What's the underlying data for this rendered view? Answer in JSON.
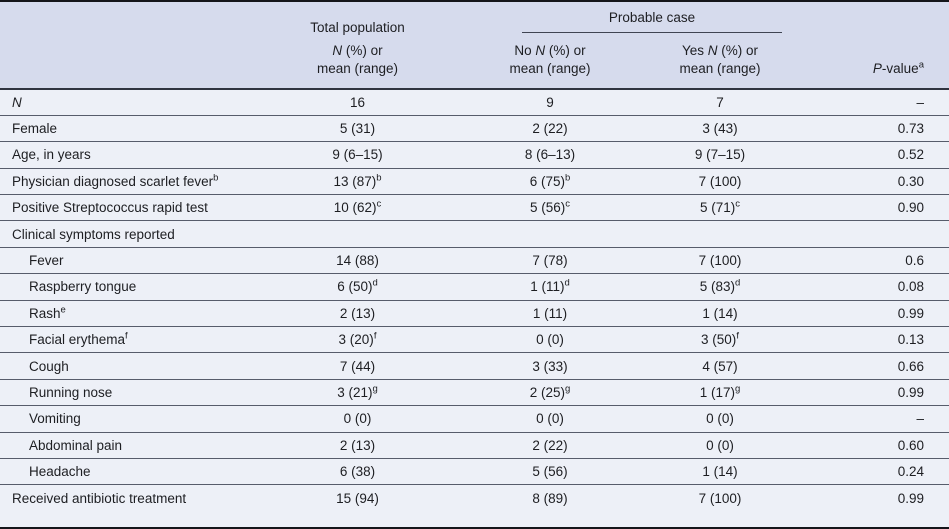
{
  "table": {
    "header": {
      "total_title": "Total population",
      "probable_title": "Probable case",
      "no_prefix": "No ",
      "yes_prefix": "Yes ",
      "n_label": "N",
      "measure_suffix": " (%) or",
      "measure_line2": "mean (range)",
      "p_label": "P",
      "p_suffix": "-value",
      "p_sup": "a"
    },
    "rows": [
      {
        "label": "N",
        "label_italic": true,
        "indent": 0,
        "cells": [
          "16",
          "9",
          "7",
          "–"
        ]
      },
      {
        "label": "Female",
        "label_italic": false,
        "indent": 0,
        "cells": [
          "5 (31)",
          "2 (22)",
          "3 (43)",
          "0.73"
        ]
      },
      {
        "label": "Age, in years",
        "label_italic": false,
        "indent": 0,
        "cells": [
          "9 (6–15)",
          "8 (6–13)",
          "9 (7–15)",
          "0.52"
        ]
      },
      {
        "label": "Physician diagnosed scarlet fever^b",
        "label_italic": false,
        "indent": 0,
        "cells": [
          "13 (87)^b",
          "6 (75)^b",
          "7 (100)",
          "0.30"
        ]
      },
      {
        "label": "Positive Streptococcus rapid test",
        "label_italic": false,
        "indent": 0,
        "cells": [
          "10 (62)^c",
          "5 (56)^c",
          "5 (71)^c",
          "0.90"
        ]
      },
      {
        "label": "Clinical symptoms reported",
        "label_italic": false,
        "indent": 0,
        "cells": [
          "",
          "",
          "",
          ""
        ]
      },
      {
        "label": "Fever",
        "label_italic": false,
        "indent": 1,
        "cells": [
          "14 (88)",
          "7 (78)",
          "7 (100)",
          "0.6"
        ]
      },
      {
        "label": "Raspberry tongue",
        "label_italic": false,
        "indent": 1,
        "cells": [
          "6 (50)^d",
          "1 (11)^d",
          "5 (83)^d",
          "0.08"
        ]
      },
      {
        "label": "Rash^e",
        "label_italic": false,
        "indent": 1,
        "cells": [
          "2 (13)",
          "1 (11)",
          "1 (14)",
          "0.99"
        ]
      },
      {
        "label": "Facial erythema^f",
        "label_italic": false,
        "indent": 1,
        "cells": [
          "3 (20)^f",
          "0 (0)",
          "3 (50)^f",
          "0.13"
        ]
      },
      {
        "label": "Cough",
        "label_italic": false,
        "indent": 1,
        "cells": [
          "7 (44)",
          "3 (33)",
          "4 (57)",
          "0.66"
        ]
      },
      {
        "label": "Running nose",
        "label_italic": false,
        "indent": 1,
        "cells": [
          "3 (21)^g",
          "2 (25)^g",
          "1 (17)^g",
          "0.99"
        ]
      },
      {
        "label": "Vomiting",
        "label_italic": false,
        "indent": 1,
        "cells": [
          "0 (0)",
          "0 (0)",
          "0 (0)",
          "–"
        ]
      },
      {
        "label": "Abdominal pain",
        "label_italic": false,
        "indent": 1,
        "cells": [
          "2 (13)",
          "2 (22)",
          "0 (0)",
          "0.60"
        ]
      },
      {
        "label": "Headache",
        "label_italic": false,
        "indent": 1,
        "cells": [
          "6 (38)",
          "5 (56)",
          "1 (14)",
          "0.24"
        ]
      },
      {
        "label": "Received antibiotic treatment",
        "label_italic": false,
        "indent": 0,
        "cells": [
          "15 (94)",
          "8 (89)",
          "7 (100)",
          "0.99"
        ]
      }
    ],
    "colors": {
      "header_bg": "#d6dbed",
      "body_bg": "#edf0f7",
      "row_line": "#575c6b",
      "outer_border": "#14151a"
    }
  }
}
